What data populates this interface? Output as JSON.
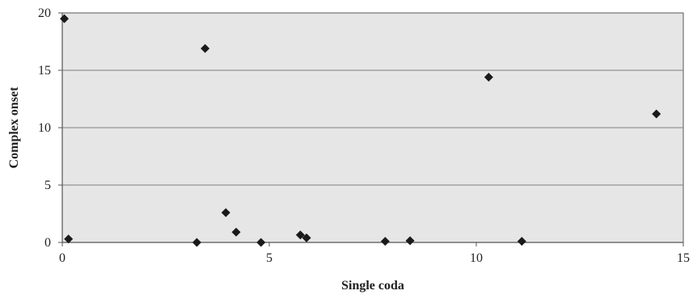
{
  "chart_data": {
    "type": "scatter",
    "title": "",
    "xlabel": "Single coda",
    "ylabel": "Complex onset",
    "xlim": [
      0,
      15
    ],
    "ylim": [
      0,
      20
    ],
    "x_ticks": [
      "0",
      "5",
      "10",
      "15"
    ],
    "y_ticks": [
      "0",
      "5",
      "10",
      "15",
      "20"
    ],
    "grid": "horizontal",
    "legend": "none",
    "colors": {
      "plot_background": "#e6e6e6",
      "gridline": "#7f7f7f",
      "marker": "#1a1a1a",
      "axis": "#555555"
    },
    "marker_shape": "diamond",
    "points": [
      {
        "x": 0.05,
        "y": 19.5
      },
      {
        "x": 0.15,
        "y": 0.3
      },
      {
        "x": 3.25,
        "y": 0.0
      },
      {
        "x": 3.45,
        "y": 16.9
      },
      {
        "x": 3.95,
        "y": 2.6
      },
      {
        "x": 4.2,
        "y": 0.9
      },
      {
        "x": 4.8,
        "y": 0.0
      },
      {
        "x": 5.75,
        "y": 0.65
      },
      {
        "x": 5.9,
        "y": 0.4
      },
      {
        "x": 7.8,
        "y": 0.1
      },
      {
        "x": 8.4,
        "y": 0.15
      },
      {
        "x": 10.3,
        "y": 14.4
      },
      {
        "x": 11.1,
        "y": 0.1
      },
      {
        "x": 14.35,
        "y": 11.2
      }
    ]
  }
}
